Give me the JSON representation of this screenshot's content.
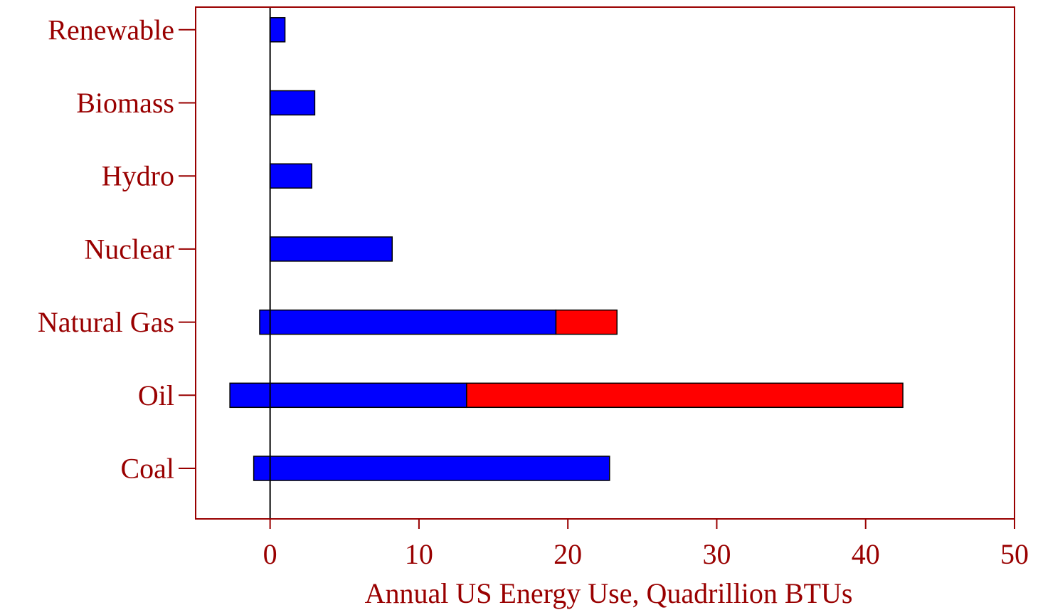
{
  "chart_data": {
    "type": "bar",
    "orientation": "horizontal",
    "stacked": true,
    "xlabel": "Annual US Energy Use, Quadrillion BTUs",
    "ylabel": "",
    "title": "",
    "xlim": [
      -5,
      50
    ],
    "xticks": [
      0,
      10,
      20,
      30,
      40,
      50
    ],
    "categories": [
      "Coal",
      "Oil",
      "Natural Gas",
      "Nuclear",
      "Hydro",
      "Biomass",
      "Renewable"
    ],
    "series": [
      {
        "color": "#0000ff",
        "starts": [
          -1.1,
          -2.7,
          -0.7,
          0,
          0,
          0,
          0
        ],
        "values": [
          23.9,
          15.9,
          19.9,
          8.2,
          2.8,
          3.0,
          1.0
        ]
      },
      {
        "color": "#ff0000",
        "starts": [
          23.8,
          13.2,
          19.2,
          8.2,
          2.8,
          3.0,
          1.0
        ],
        "values": [
          0,
          29.3,
          4.1,
          0,
          0,
          0,
          0
        ]
      }
    ],
    "grid": false,
    "colors": {
      "axis": "#990000",
      "zero_line": "#000000",
      "bar_outline": "#000000"
    }
  }
}
